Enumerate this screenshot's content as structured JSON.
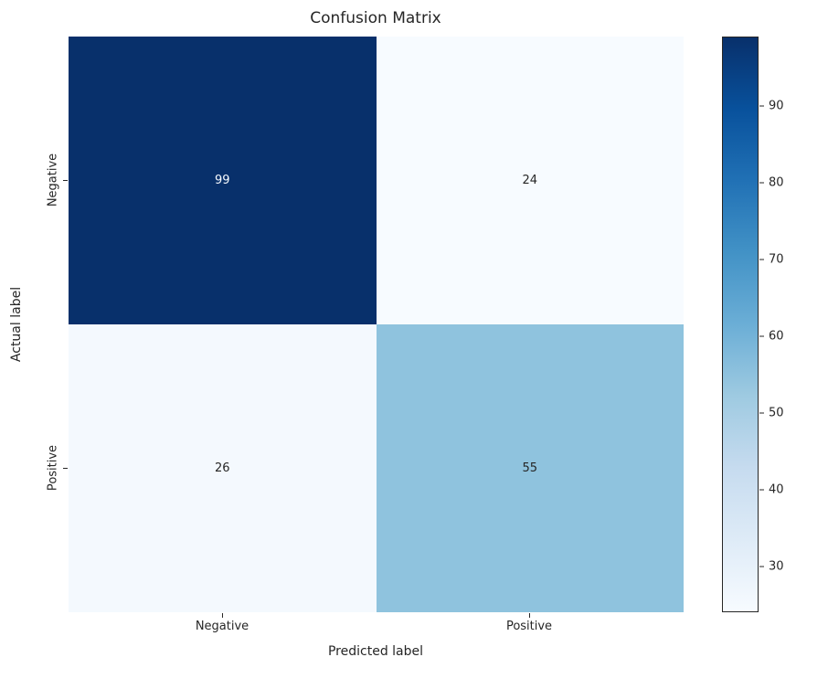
{
  "chart_data": {
    "type": "heatmap",
    "title": "Confusion Matrix",
    "xlabel": "Predicted label",
    "ylabel": "Actual label",
    "x_categories": [
      "Negative",
      "Positive"
    ],
    "y_categories": [
      "Negative",
      "Positive"
    ],
    "values": [
      [
        99,
        24
      ],
      [
        26,
        55
      ]
    ],
    "colormap": "Blues",
    "vmin": 24,
    "vmax": 99,
    "colorbar_ticks": [
      30,
      40,
      50,
      60,
      70,
      80,
      90
    ],
    "cells": [
      {
        "row": "Negative",
        "col": "Negative",
        "value": 99,
        "bg": "#08306b",
        "fg": "#f7fbff"
      },
      {
        "row": "Negative",
        "col": "Positive",
        "value": 24,
        "bg": "#f7fbff",
        "fg": "#262626"
      },
      {
        "row": "Positive",
        "col": "Negative",
        "value": 26,
        "bg": "#f4f9fe",
        "fg": "#262626"
      },
      {
        "row": "Positive",
        "col": "Positive",
        "value": 55,
        "bg": "#8fc3de",
        "fg": "#262626"
      }
    ],
    "gradient_stops": [
      "#f7fbff",
      "#deebf7",
      "#c6dbef",
      "#9ecae1",
      "#6baed6",
      "#4292c6",
      "#2171b5",
      "#08519c",
      "#08306b"
    ]
  }
}
